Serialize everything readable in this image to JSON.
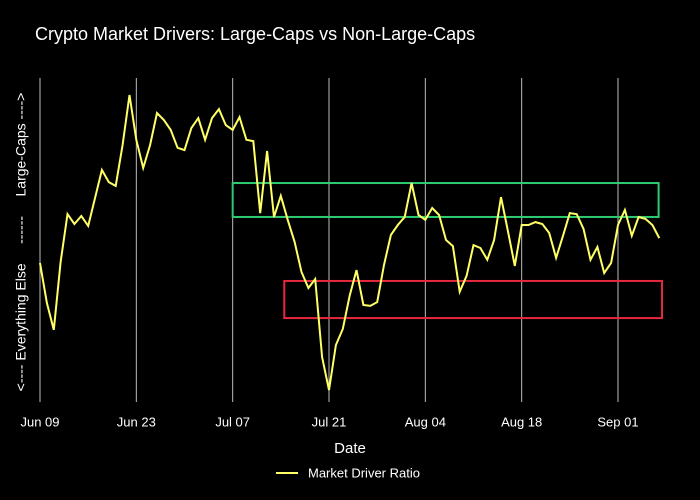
{
  "chart_data": {
    "type": "line",
    "title": "Crypto Market Drivers: Large-Caps vs Non-Large-Caps",
    "x_label": "Date",
    "y_label": "<---- Everything Else     ------     Large-Caps ---->",
    "categories": [
      "Jun 09",
      null,
      null,
      null,
      null,
      null,
      null,
      null,
      null,
      null,
      null,
      null,
      null,
      null,
      "Jun 23",
      null,
      null,
      null,
      null,
      null,
      null,
      null,
      null,
      null,
      null,
      null,
      null,
      null,
      "Jul 07",
      null,
      null,
      null,
      null,
      null,
      null,
      null,
      null,
      null,
      null,
      null,
      null,
      null,
      "Jul 21",
      null,
      null,
      null,
      null,
      null,
      null,
      null,
      null,
      null,
      null,
      null,
      null,
      null,
      "Aug 04",
      null,
      null,
      null,
      null,
      null,
      null,
      null,
      null,
      null,
      null,
      null,
      null,
      null,
      "Aug 18",
      null,
      null,
      null,
      null,
      null,
      null,
      null,
      null,
      null,
      null,
      null,
      null,
      null,
      "Sep 01",
      null,
      null,
      null,
      null,
      null,
      null
    ],
    "series": [
      {
        "name": "Market Driver Ratio",
        "color": "#ffff66",
        "values": [
          42.8,
          30.3,
          21.9,
          43.1,
          58.1,
          55,
          57.5,
          54.4,
          63.1,
          71.9,
          68.1,
          66.9,
          79.7,
          95.3,
          81.3,
          72.5,
          79.7,
          89.7,
          87.5,
          84.4,
          78.8,
          78.1,
          85,
          88.1,
          81.3,
          88.1,
          90.9,
          85.9,
          84.4,
          88.4,
          81.3,
          80.9,
          58.4,
          77.8,
          57.2,
          63.8,
          56.3,
          49.4,
          40,
          35,
          37.8,
          13.4,
          3.1,
          17.2,
          22.2,
          32.5,
          40.6,
          29.7,
          29.4,
          30.6,
          42.2,
          51.6,
          54.7,
          57.2,
          67.8,
          57.8,
          56.3,
          60,
          57.8,
          50,
          48.1,
          33.8,
          38.8,
          48.4,
          47.5,
          43.8,
          50,
          63.4,
          52.8,
          41.9,
          54.7,
          54.7,
          55.6,
          55,
          52.2,
          44.4,
          51.3,
          58.4,
          58.1,
          53.4,
          43.8,
          47.8,
          39.7,
          42.8,
          54.7,
          59.4,
          51.3,
          57.2,
          56.6,
          54.7,
          50.6
        ]
      }
    ],
    "ylim": [
      0,
      100
    ],
    "grid": true,
    "shapes": [
      {
        "x0": 28,
        "x1": 89.9,
        "y0": 57.2,
        "y1": 67.8,
        "color": "#2ecc71"
      },
      {
        "x0": 35.5,
        "x1": 90.4,
        "y0": 25.6,
        "y1": 37.2,
        "color": "#e8283c"
      }
    ]
  }
}
